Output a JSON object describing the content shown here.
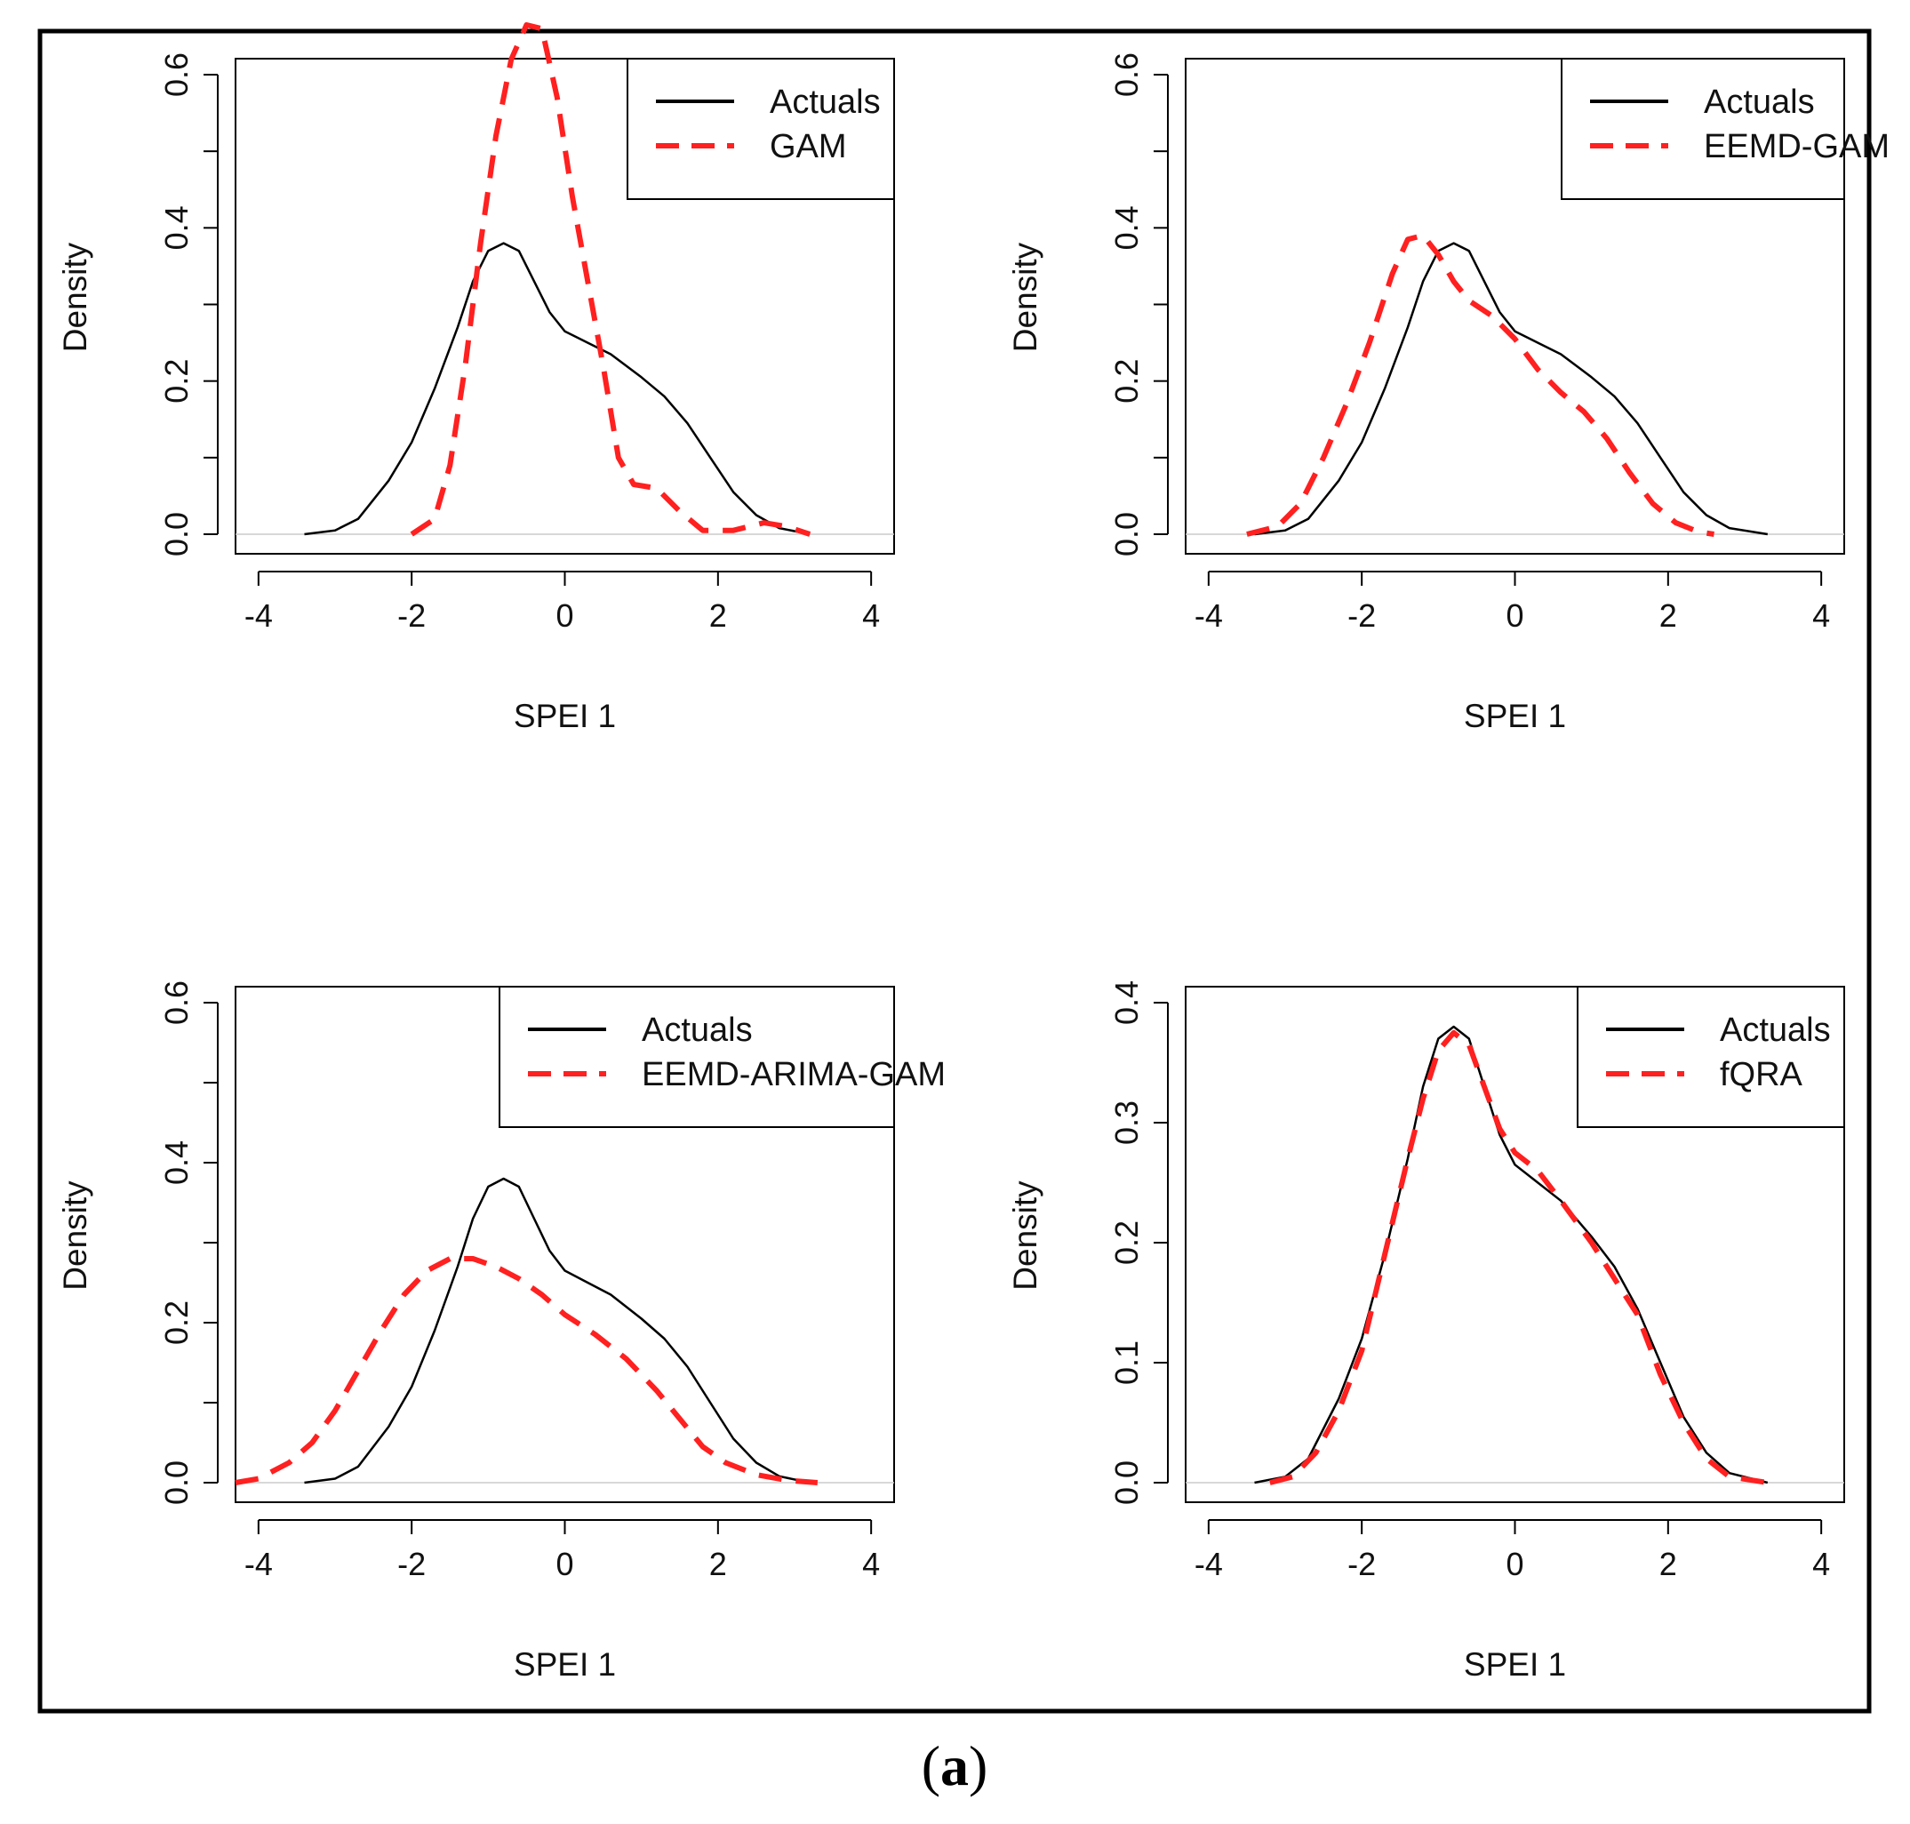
{
  "caption": {
    "open": "(",
    "letter": "a",
    "close": ")"
  },
  "colors": {
    "actuals": "#000000",
    "model": "#ff2020"
  },
  "chart_data": [
    {
      "type": "line",
      "xlabel": "SPEI 1",
      "ylabel": "Density",
      "xlim": [
        -4.3,
        4.3
      ],
      "ylim": [
        0,
        0.7
      ],
      "xticks": [
        -4,
        -2,
        0,
        2,
        4
      ],
      "yticks": [
        0.0,
        0.1,
        0.2,
        0.3,
        0.4,
        0.5,
        0.6
      ],
      "ytick_labels": [
        "0.0",
        "0.2",
        "0.4",
        "0.6"
      ],
      "legend": "top-right",
      "series": [
        {
          "name": "Actuals",
          "style": "solid",
          "points": [
            [
              -3.4,
              0.0
            ],
            [
              -3.0,
              0.005
            ],
            [
              -2.7,
              0.02
            ],
            [
              -2.3,
              0.07
            ],
            [
              -2.0,
              0.12
            ],
            [
              -1.7,
              0.19
            ],
            [
              -1.4,
              0.27
            ],
            [
              -1.2,
              0.33
            ],
            [
              -1.0,
              0.37
            ],
            [
              -0.8,
              0.38
            ],
            [
              -0.6,
              0.37
            ],
            [
              -0.4,
              0.33
            ],
            [
              -0.2,
              0.29
            ],
            [
              0.0,
              0.265
            ],
            [
              0.3,
              0.25
            ],
            [
              0.6,
              0.235
            ],
            [
              1.0,
              0.205
            ],
            [
              1.3,
              0.18
            ],
            [
              1.6,
              0.145
            ],
            [
              1.9,
              0.1
            ],
            [
              2.2,
              0.055
            ],
            [
              2.5,
              0.025
            ],
            [
              2.8,
              0.008
            ],
            [
              3.2,
              0.0
            ]
          ]
        },
        {
          "name": "GAM",
          "style": "dashed",
          "points": [
            [
              -2.0,
              0.0
            ],
            [
              -1.7,
              0.02
            ],
            [
              -1.5,
              0.09
            ],
            [
              -1.3,
              0.22
            ],
            [
              -1.1,
              0.38
            ],
            [
              -0.9,
              0.52
            ],
            [
              -0.7,
              0.62
            ],
            [
              -0.5,
              0.665
            ],
            [
              -0.3,
              0.66
            ],
            [
              -0.1,
              0.57
            ],
            [
              0.1,
              0.44
            ],
            [
              0.3,
              0.33
            ],
            [
              0.5,
              0.22
            ],
            [
              0.7,
              0.1
            ],
            [
              0.9,
              0.065
            ],
            [
              1.2,
              0.06
            ],
            [
              1.5,
              0.03
            ],
            [
              1.8,
              0.005
            ],
            [
              2.2,
              0.005
            ],
            [
              2.6,
              0.015
            ],
            [
              2.9,
              0.01
            ],
            [
              3.2,
              0.0
            ]
          ]
        }
      ]
    },
    {
      "type": "line",
      "xlabel": "SPEI 1",
      "ylabel": "Density",
      "xlim": [
        -4.3,
        4.3
      ],
      "ylim": [
        0,
        0.6
      ],
      "xticks": [
        -4,
        -2,
        0,
        2,
        4
      ],
      "yticks": [
        0.0,
        0.1,
        0.2,
        0.3,
        0.4,
        0.5,
        0.6
      ],
      "ytick_labels": [
        "0.0",
        "0.2",
        "0.4",
        "0.6"
      ],
      "legend": "top-right",
      "series": [
        {
          "name": "Actuals",
          "style": "solid",
          "points": [
            [
              -3.4,
              0.0
            ],
            [
              -3.0,
              0.005
            ],
            [
              -2.7,
              0.02
            ],
            [
              -2.3,
              0.07
            ],
            [
              -2.0,
              0.12
            ],
            [
              -1.7,
              0.19
            ],
            [
              -1.4,
              0.27
            ],
            [
              -1.2,
              0.33
            ],
            [
              -1.0,
              0.37
            ],
            [
              -0.8,
              0.38
            ],
            [
              -0.6,
              0.37
            ],
            [
              -0.4,
              0.33
            ],
            [
              -0.2,
              0.29
            ],
            [
              0.0,
              0.265
            ],
            [
              0.3,
              0.25
            ],
            [
              0.6,
              0.235
            ],
            [
              1.0,
              0.205
            ],
            [
              1.3,
              0.18
            ],
            [
              1.6,
              0.145
            ],
            [
              1.9,
              0.1
            ],
            [
              2.2,
              0.055
            ],
            [
              2.5,
              0.025
            ],
            [
              2.8,
              0.008
            ],
            [
              3.3,
              0.0
            ]
          ]
        },
        {
          "name": "EEMD-GAM",
          "style": "dashed",
          "points": [
            [
              -3.5,
              0.0
            ],
            [
              -3.1,
              0.01
            ],
            [
              -2.8,
              0.04
            ],
            [
              -2.5,
              0.1
            ],
            [
              -2.2,
              0.17
            ],
            [
              -1.9,
              0.25
            ],
            [
              -1.6,
              0.34
            ],
            [
              -1.4,
              0.385
            ],
            [
              -1.2,
              0.39
            ],
            [
              -1.0,
              0.365
            ],
            [
              -0.8,
              0.33
            ],
            [
              -0.6,
              0.305
            ],
            [
              -0.3,
              0.285
            ],
            [
              0.0,
              0.255
            ],
            [
              0.3,
              0.215
            ],
            [
              0.6,
              0.185
            ],
            [
              0.9,
              0.16
            ],
            [
              1.2,
              0.125
            ],
            [
              1.5,
              0.08
            ],
            [
              1.8,
              0.04
            ],
            [
              2.1,
              0.015
            ],
            [
              2.4,
              0.003
            ],
            [
              2.6,
              0.0
            ]
          ]
        }
      ]
    },
    {
      "type": "line",
      "xlabel": "SPEI 1",
      "ylabel": "Density",
      "xlim": [
        -4.3,
        4.3
      ],
      "ylim": [
        0,
        0.6
      ],
      "xticks": [
        -4,
        -2,
        0,
        2,
        4
      ],
      "yticks": [
        0.0,
        0.1,
        0.2,
        0.3,
        0.4,
        0.5,
        0.6
      ],
      "ytick_labels": [
        "0.0",
        "0.2",
        "0.4",
        "0.6"
      ],
      "legend": "top-right",
      "series": [
        {
          "name": "Actuals",
          "style": "solid",
          "points": [
            [
              -3.4,
              0.0
            ],
            [
              -3.0,
              0.005
            ],
            [
              -2.7,
              0.02
            ],
            [
              -2.3,
              0.07
            ],
            [
              -2.0,
              0.12
            ],
            [
              -1.7,
              0.19
            ],
            [
              -1.4,
              0.27
            ],
            [
              -1.2,
              0.33
            ],
            [
              -1.0,
              0.37
            ],
            [
              -0.8,
              0.38
            ],
            [
              -0.6,
              0.37
            ],
            [
              -0.4,
              0.33
            ],
            [
              -0.2,
              0.29
            ],
            [
              0.0,
              0.265
            ],
            [
              0.3,
              0.25
            ],
            [
              0.6,
              0.235
            ],
            [
              1.0,
              0.205
            ],
            [
              1.3,
              0.18
            ],
            [
              1.6,
              0.145
            ],
            [
              1.9,
              0.1
            ],
            [
              2.2,
              0.055
            ],
            [
              2.5,
              0.025
            ],
            [
              2.8,
              0.008
            ],
            [
              3.2,
              0.0
            ]
          ]
        },
        {
          "name": "EEMD-ARIMA-GAM",
          "style": "dashed",
          "points": [
            [
              -4.3,
              0.0
            ],
            [
              -4.0,
              0.005
            ],
            [
              -3.6,
              0.025
            ],
            [
              -3.3,
              0.05
            ],
            [
              -3.0,
              0.09
            ],
            [
              -2.7,
              0.14
            ],
            [
              -2.4,
              0.19
            ],
            [
              -2.1,
              0.235
            ],
            [
              -1.8,
              0.265
            ],
            [
              -1.5,
              0.28
            ],
            [
              -1.2,
              0.28
            ],
            [
              -0.9,
              0.27
            ],
            [
              -0.6,
              0.255
            ],
            [
              -0.3,
              0.235
            ],
            [
              0.0,
              0.21
            ],
            [
              0.4,
              0.185
            ],
            [
              0.8,
              0.155
            ],
            [
              1.2,
              0.115
            ],
            [
              1.5,
              0.08
            ],
            [
              1.8,
              0.045
            ],
            [
              2.1,
              0.025
            ],
            [
              2.5,
              0.01
            ],
            [
              2.9,
              0.003
            ],
            [
              3.3,
              0.0
            ]
          ]
        }
      ]
    },
    {
      "type": "line",
      "xlabel": "SPEI 1",
      "ylabel": "Density",
      "xlim": [
        -4.3,
        4.3
      ],
      "ylim": [
        0,
        0.4
      ],
      "xticks": [
        -4,
        -2,
        0,
        2,
        4
      ],
      "yticks": [
        0.0,
        0.1,
        0.2,
        0.3,
        0.4
      ],
      "ytick_labels": [
        "0.0",
        "0.1",
        "0.2",
        "0.3",
        "0.4"
      ],
      "legend": "top-right",
      "series": [
        {
          "name": "Actuals",
          "style": "solid",
          "points": [
            [
              -3.4,
              0.0
            ],
            [
              -3.0,
              0.005
            ],
            [
              -2.7,
              0.02
            ],
            [
              -2.3,
              0.07
            ],
            [
              -2.0,
              0.12
            ],
            [
              -1.7,
              0.19
            ],
            [
              -1.4,
              0.27
            ],
            [
              -1.2,
              0.33
            ],
            [
              -1.0,
              0.37
            ],
            [
              -0.8,
              0.38
            ],
            [
              -0.6,
              0.37
            ],
            [
              -0.4,
              0.33
            ],
            [
              -0.2,
              0.29
            ],
            [
              0.0,
              0.265
            ],
            [
              0.3,
              0.25
            ],
            [
              0.6,
              0.235
            ],
            [
              1.0,
              0.205
            ],
            [
              1.3,
              0.18
            ],
            [
              1.6,
              0.145
            ],
            [
              1.9,
              0.1
            ],
            [
              2.2,
              0.055
            ],
            [
              2.5,
              0.025
            ],
            [
              2.8,
              0.008
            ],
            [
              3.3,
              0.0
            ]
          ]
        },
        {
          "name": "fQRA",
          "style": "dashed",
          "points": [
            [
              -3.2,
              0.0
            ],
            [
              -2.9,
              0.005
            ],
            [
              -2.6,
              0.025
            ],
            [
              -2.3,
              0.06
            ],
            [
              -2.0,
              0.11
            ],
            [
              -1.7,
              0.19
            ],
            [
              -1.4,
              0.27
            ],
            [
              -1.2,
              0.32
            ],
            [
              -1.0,
              0.36
            ],
            [
              -0.8,
              0.375
            ],
            [
              -0.6,
              0.365
            ],
            [
              -0.4,
              0.33
            ],
            [
              -0.2,
              0.295
            ],
            [
              0.0,
              0.275
            ],
            [
              0.3,
              0.26
            ],
            [
              0.6,
              0.235
            ],
            [
              1.0,
              0.2
            ],
            [
              1.3,
              0.17
            ],
            [
              1.6,
              0.14
            ],
            [
              1.9,
              0.09
            ],
            [
              2.2,
              0.05
            ],
            [
              2.5,
              0.02
            ],
            [
              2.8,
              0.005
            ],
            [
              3.3,
              0.0
            ]
          ]
        }
      ]
    }
  ]
}
